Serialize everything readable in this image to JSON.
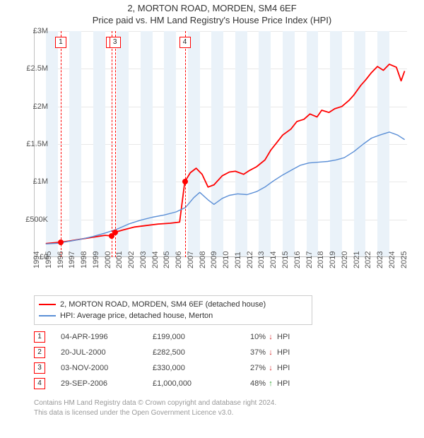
{
  "title_line1": "2, MORTON ROAD, MORDEN, SM4 6EF",
  "title_line2": "Price paid vs. HM Land Registry's House Price Index (HPI)",
  "chart": {
    "background_color": "#ffffff",
    "grid_color": "#e8e8e8",
    "axis_color": "#c0c0c0",
    "shade_color": "#eaf2f9",
    "x": {
      "min": 1994,
      "max": 2025.5,
      "ticks": [
        1994,
        1995,
        1996,
        1997,
        1998,
        1999,
        2000,
        2001,
        2002,
        2003,
        2004,
        2005,
        2006,
        2007,
        2008,
        2009,
        2010,
        2011,
        2012,
        2013,
        2014,
        2015,
        2016,
        2017,
        2018,
        2019,
        2020,
        2021,
        2022,
        2023,
        2024,
        2025
      ]
    },
    "y": {
      "min": 0,
      "max": 3000000,
      "ticks": [
        {
          "v": 0,
          "label": "£0"
        },
        {
          "v": 500000,
          "label": "£500K"
        },
        {
          "v": 1000000,
          "label": "£1M"
        },
        {
          "v": 1500000,
          "label": "£1.5M"
        },
        {
          "v": 2000000,
          "label": "£2M"
        },
        {
          "v": 2500000,
          "label": "£2.5M"
        },
        {
          "v": 3000000,
          "label": "£3M"
        }
      ]
    },
    "shaded_years": [
      1995,
      1997,
      1999,
      2001,
      2003,
      2005,
      2007,
      2009,
      2011,
      2013,
      2015,
      2017,
      2019,
      2021,
      2023
    ],
    "series": [
      {
        "name": "2, MORTON ROAD, MORDEN, SM4 6EF (detached house)",
        "color": "#ff0000",
        "width": 1.8,
        "points": [
          [
            1995.0,
            180000
          ],
          [
            1996.26,
            199000
          ],
          [
            1997.0,
            215000
          ],
          [
            1998.0,
            240000
          ],
          [
            1999.0,
            265000
          ],
          [
            2000.0,
            290000
          ],
          [
            2000.55,
            282500
          ],
          [
            2000.84,
            330000
          ],
          [
            2001.5,
            360000
          ],
          [
            2002.5,
            400000
          ],
          [
            2003.5,
            420000
          ],
          [
            2004.5,
            440000
          ],
          [
            2005.5,
            450000
          ],
          [
            2006.3,
            465000
          ],
          [
            2006.74,
            1000000
          ],
          [
            2007.2,
            1120000
          ],
          [
            2007.7,
            1180000
          ],
          [
            2008.2,
            1100000
          ],
          [
            2008.7,
            930000
          ],
          [
            2009.2,
            960000
          ],
          [
            2009.9,
            1080000
          ],
          [
            2010.5,
            1130000
          ],
          [
            2011.0,
            1140000
          ],
          [
            2011.7,
            1100000
          ],
          [
            2012.2,
            1150000
          ],
          [
            2012.8,
            1200000
          ],
          [
            2013.5,
            1290000
          ],
          [
            2014.0,
            1420000
          ],
          [
            2014.5,
            1520000
          ],
          [
            2015.0,
            1620000
          ],
          [
            2015.7,
            1700000
          ],
          [
            2016.2,
            1800000
          ],
          [
            2016.8,
            1830000
          ],
          [
            2017.3,
            1900000
          ],
          [
            2017.9,
            1860000
          ],
          [
            2018.3,
            1950000
          ],
          [
            2018.9,
            1920000
          ],
          [
            2019.4,
            1970000
          ],
          [
            2020.0,
            2000000
          ],
          [
            2020.6,
            2080000
          ],
          [
            2021.0,
            2150000
          ],
          [
            2021.6,
            2280000
          ],
          [
            2022.0,
            2350000
          ],
          [
            2022.5,
            2450000
          ],
          [
            2023.0,
            2530000
          ],
          [
            2023.5,
            2480000
          ],
          [
            2024.0,
            2560000
          ],
          [
            2024.6,
            2520000
          ],
          [
            2025.0,
            2340000
          ],
          [
            2025.3,
            2470000
          ]
        ]
      },
      {
        "name": "HPI: Average price, detached house, Merton",
        "color": "#5b8fd6",
        "width": 1.4,
        "points": [
          [
            1995.0,
            175000
          ],
          [
            1996.0,
            185000
          ],
          [
            1997.0,
            210000
          ],
          [
            1998.0,
            240000
          ],
          [
            1999.0,
            275000
          ],
          [
            2000.0,
            320000
          ],
          [
            2001.0,
            370000
          ],
          [
            2002.0,
            440000
          ],
          [
            2003.0,
            490000
          ],
          [
            2004.0,
            530000
          ],
          [
            2005.0,
            560000
          ],
          [
            2006.0,
            600000
          ],
          [
            2006.8,
            660000
          ],
          [
            2007.5,
            790000
          ],
          [
            2008.0,
            860000
          ],
          [
            2008.7,
            760000
          ],
          [
            2009.2,
            700000
          ],
          [
            2009.9,
            780000
          ],
          [
            2010.5,
            820000
          ],
          [
            2011.2,
            840000
          ],
          [
            2012.0,
            830000
          ],
          [
            2012.8,
            870000
          ],
          [
            2013.5,
            930000
          ],
          [
            2014.2,
            1010000
          ],
          [
            2015.0,
            1090000
          ],
          [
            2015.8,
            1160000
          ],
          [
            2016.5,
            1220000
          ],
          [
            2017.2,
            1250000
          ],
          [
            2018.0,
            1260000
          ],
          [
            2018.8,
            1270000
          ],
          [
            2019.5,
            1290000
          ],
          [
            2020.2,
            1320000
          ],
          [
            2021.0,
            1400000
          ],
          [
            2021.8,
            1500000
          ],
          [
            2022.5,
            1580000
          ],
          [
            2023.2,
            1620000
          ],
          [
            2024.0,
            1660000
          ],
          [
            2024.7,
            1620000
          ],
          [
            2025.3,
            1560000
          ]
        ]
      }
    ],
    "sale_markers": [
      {
        "n": "1",
        "year": 1996.26,
        "price": 199000
      },
      {
        "n": "2",
        "year": 2000.55,
        "price": 282500
      },
      {
        "n": "3",
        "year": 2000.84,
        "price": 330000
      },
      {
        "n": "4",
        "year": 2006.74,
        "price": 1000000
      }
    ]
  },
  "legend": [
    {
      "label": "2, MORTON ROAD, MORDEN, SM4 6EF (detached house)",
      "color": "#ff0000"
    },
    {
      "label": "HPI: Average price, detached house, Merton",
      "color": "#5b8fd6"
    }
  ],
  "sales": [
    {
      "n": "1",
      "date": "04-APR-1996",
      "price": "£199,000",
      "pct": "10%",
      "dir": "down",
      "hpi": "HPI"
    },
    {
      "n": "2",
      "date": "20-JUL-2000",
      "price": "£282,500",
      "pct": "37%",
      "dir": "down",
      "hpi": "HPI"
    },
    {
      "n": "3",
      "date": "03-NOV-2000",
      "price": "£330,000",
      "pct": "27%",
      "dir": "down",
      "hpi": "HPI"
    },
    {
      "n": "4",
      "date": "29-SEP-2006",
      "price": "£1,000,000",
      "pct": "48%",
      "dir": "up",
      "hpi": "HPI"
    }
  ],
  "colors": {
    "up": "#2ca02c",
    "down": "#d62728"
  },
  "footer1": "Contains HM Land Registry data © Crown copyright and database right 2024.",
  "footer2": "This data is licensed under the Open Government Licence v3.0."
}
